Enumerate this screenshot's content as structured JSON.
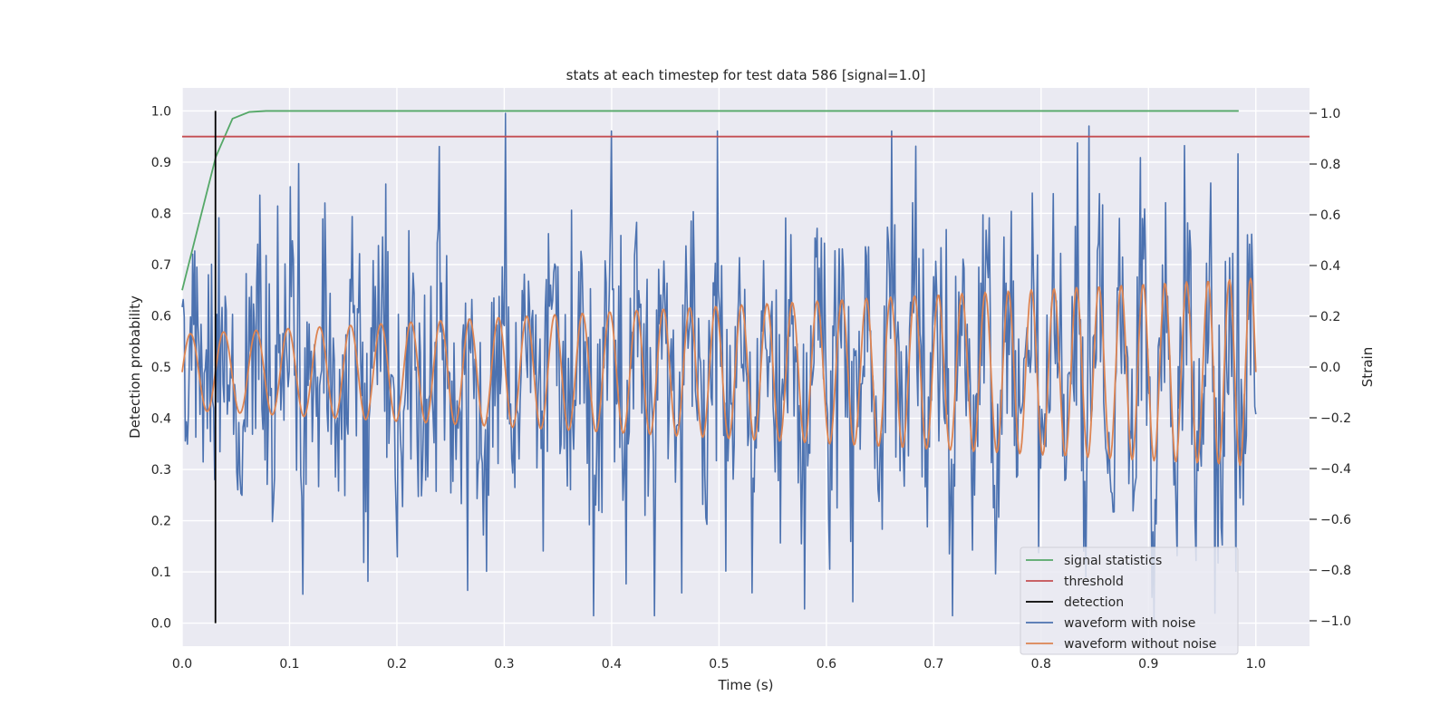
{
  "chart_data": {
    "type": "line",
    "title": "stats at each timestep for test data 586 [signal=1.0]",
    "xlabel": "Time (s)",
    "ylabel": "Detection probability",
    "y2label": "Strain",
    "xlim": [
      0.0,
      1.05
    ],
    "ylim": [
      -0.045,
      1.045
    ],
    "y2lim": [
      -1.1,
      1.1
    ],
    "xticks": [
      "0.0",
      "0.1",
      "0.2",
      "0.3",
      "0.4",
      "0.5",
      "0.6",
      "0.7",
      "0.8",
      "0.9",
      "1.0"
    ],
    "yticks": [
      "0.0",
      "0.1",
      "0.2",
      "0.3",
      "0.4",
      "0.5",
      "0.6",
      "0.7",
      "0.8",
      "0.9",
      "1.0"
    ],
    "y2ticks": [
      "−1.0",
      "−0.8",
      "−0.6",
      "−0.4",
      "−0.2",
      "0.0",
      "0.2",
      "0.4",
      "0.6",
      "0.8",
      "1.0"
    ],
    "grid": true,
    "legend_position": "lower-right",
    "legend": [
      {
        "label": "signal statistics",
        "color": "#55a868"
      },
      {
        "label": "threshold",
        "color": "#c44e52"
      },
      {
        "label": "detection",
        "color": "#000000"
      },
      {
        "label": "waveform with noise",
        "color": "#4c72b0"
      },
      {
        "label": "waveform without noise",
        "color": "#dd8452"
      }
    ],
    "series": [
      {
        "name": "signal statistics",
        "axis": "left",
        "color": "#55a868",
        "x": [
          0.0,
          0.0156,
          0.0313,
          0.0469,
          0.0625,
          0.0781,
          0.1,
          0.2,
          0.5,
          0.984
        ],
        "y": [
          0.65,
          0.78,
          0.91,
          0.985,
          0.998,
          1.0,
          1.0,
          1.0,
          1.0,
          1.0
        ]
      },
      {
        "name": "threshold",
        "axis": "left",
        "color": "#c44e52",
        "x": [
          0.0,
          1.05
        ],
        "y": [
          0.95,
          0.95
        ]
      },
      {
        "name": "detection",
        "axis": "left",
        "color": "#000000",
        "x": [
          0.031,
          0.031
        ],
        "y": [
          0.0,
          1.0
        ]
      },
      {
        "name": "waveform with noise",
        "axis": "right",
        "color": "#4c72b0",
        "n_points": 1024,
        "x_range": [
          0.0,
          1.0
        ],
        "noise_std": 0.27,
        "noise_seed": 586,
        "peaks": [
          {
            "x": 0.301,
            "y": 1.0
          },
          {
            "x": 0.845,
            "y": 0.95
          },
          {
            "x": 0.983,
            "y": 0.84
          }
        ],
        "troughs": [
          {
            "x": 0.266,
            "y": -0.88
          },
          {
            "x": 0.465,
            "y": -0.89
          },
          {
            "x": 0.905,
            "y": -1.0
          },
          {
            "x": 0.962,
            "y": -0.97
          }
        ]
      },
      {
        "name": "waveform without noise",
        "axis": "right",
        "color": "#dd8452",
        "n_points": 1024,
        "x_range": [
          0.0,
          1.0
        ],
        "amplitude_start": 0.15,
        "amplitude_end": 0.37,
        "frequency_start_hz": 32,
        "frequency_end_hz": 51,
        "offset": -0.02
      }
    ]
  }
}
